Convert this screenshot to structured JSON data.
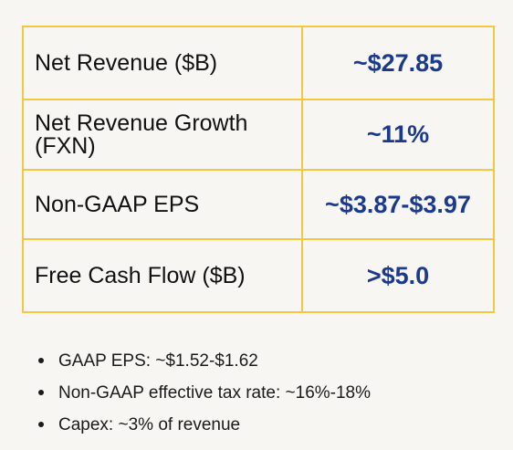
{
  "guidance_table": {
    "rows": [
      {
        "label": "Net Revenue ($B)",
        "value": "~$27.85"
      },
      {
        "label": "Net Revenue Growth (FXN)",
        "value": "~11%"
      },
      {
        "label": "Non-GAAP EPS",
        "value": "~$3.87-$3.97"
      },
      {
        "label": "Free Cash Flow ($B)",
        "value": ">$5.0"
      }
    ]
  },
  "notes": [
    "GAAP EPS: ~$1.52-$1.62",
    "Non-GAAP effective tax rate: ~16%-18%",
    "Capex: ~3% of revenue"
  ],
  "colors": {
    "border": "#f3c73f",
    "value_text": "#1b3a8c",
    "background": "#f8f6f3"
  }
}
